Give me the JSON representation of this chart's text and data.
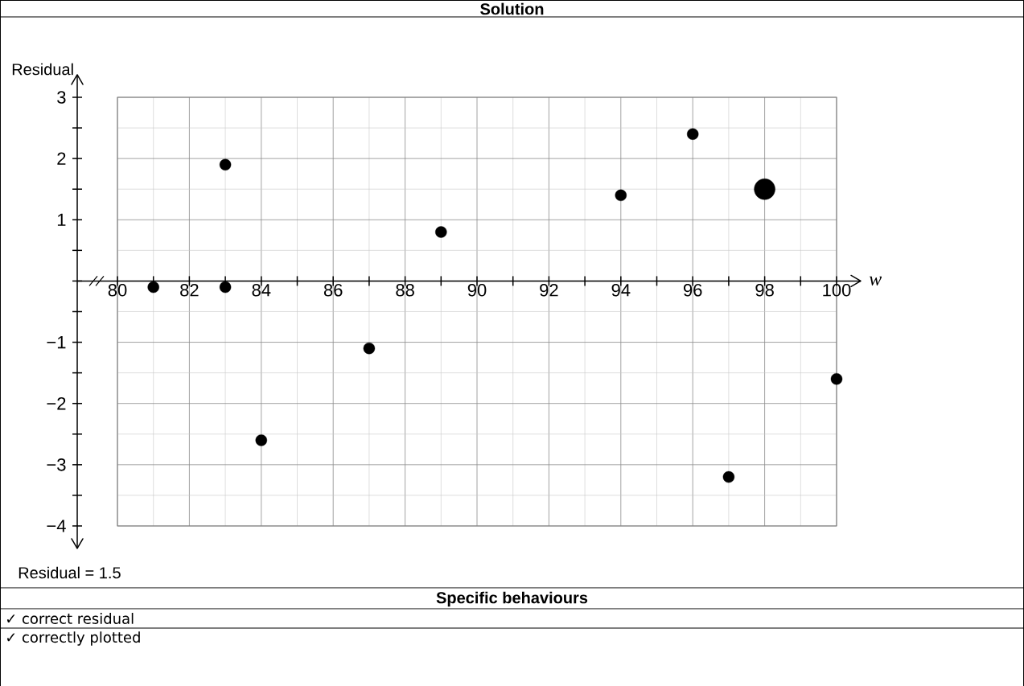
{
  "chart_data": {
    "type": "scatter",
    "title": "Solution",
    "xlabel": "w",
    "ylabel": "Residual",
    "annotations": [
      "Residual = 1.5",
      "Specific behaviours",
      "✓ correct residual",
      "✓ correctly plotted"
    ],
    "series": [
      {
        "color": "#000000",
        "x": [
          81,
          83,
          83,
          84,
          87,
          89,
          94,
          96,
          97,
          100
        ],
        "values": [
          -0.1,
          1.9,
          -0.1,
          -2.6,
          -1.1,
          0.8,
          1.4,
          2.4,
          -3.2,
          -1.6
        ]
      },
      {
        "color": "#000000",
        "x": [
          98
        ],
        "values": [
          1.5
        ]
      }
    ],
    "marker": "circle",
    "grid": true,
    "xlim": [
      80,
      100
    ],
    "ylim": [
      -4,
      3
    ],
    "xticks": [
      80,
      82,
      84,
      86,
      88,
      90,
      92,
      94,
      96,
      98,
      100
    ],
    "yticks": [
      {
        "value": -4,
        "label": "−4"
      },
      {
        "value": -3,
        "label": "−3"
      },
      {
        "value": -2,
        "label": "−2"
      },
      {
        "value": -1,
        "label": "−1"
      },
      {
        "value": 0,
        "label": null
      },
      1,
      2,
      3
    ]
  }
}
